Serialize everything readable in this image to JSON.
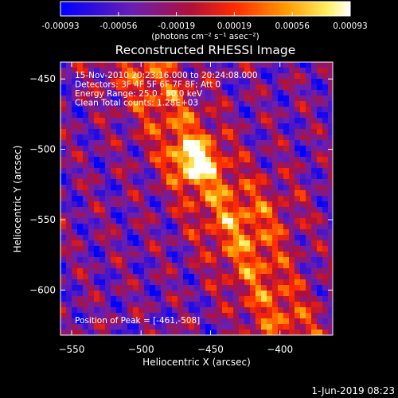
{
  "colorbar": {
    "ticks": [
      "-0.00093",
      "-0.00056",
      "-0.00019",
      "0.00019",
      "0.00056",
      "0.00093"
    ],
    "unit_label": "(photons cm⁻² s⁻¹ asec⁻²)",
    "range": [
      -0.00093,
      0.00093
    ],
    "colormap": "blue-purple-red-orange-yellow-white"
  },
  "chart_data": {
    "type": "heatmap",
    "title": "Reconstructed RHESSI Image",
    "xlabel": "Heliocentric X (arcsec)",
    "ylabel": "Heliocentric Y (arcsec)",
    "xlim": [
      -558,
      -362
    ],
    "ylim": [
      -632,
      -438
    ],
    "x_ticks": [
      -550,
      -500,
      -450,
      -400
    ],
    "y_ticks": [
      -450,
      -500,
      -550,
      -600
    ],
    "x_tick_labels": [
      "−550",
      "−500",
      "−450",
      "−400"
    ],
    "y_tick_labels": [
      "−450",
      "−500",
      "−550",
      "−600"
    ],
    "info_lines": [
      "15-Nov-2010 20:23:16.000 to 20:24:08.000",
      "Detectors: 3F 4F 5F 6F 7F 8F; Att 0",
      "Energy Range: 25.0 - 50.0 keV",
      "Clean     Total counts: 1.28E+03"
    ],
    "peak_label": "Position of Peak = [-461,-508]",
    "peak_position": [
      -461,
      -508
    ],
    "grid": false
  },
  "footer": {
    "date": "1-Jun-2019 08:23"
  }
}
